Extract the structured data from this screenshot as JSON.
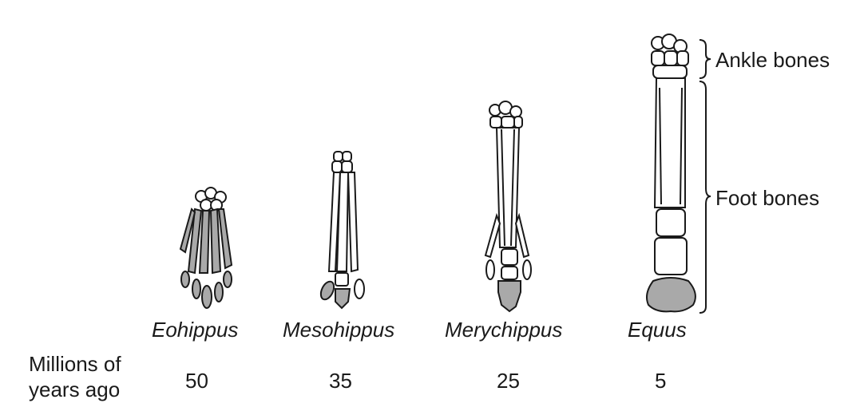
{
  "figure": {
    "time_row_label": "Millions of years ago",
    "species": [
      {
        "name": "Eohippus",
        "mya": "50"
      },
      {
        "name": "Mesohippus",
        "mya": "35"
      },
      {
        "name": "Merychippus",
        "mya": "25"
      },
      {
        "name": "Equus",
        "mya": "5"
      }
    ],
    "brace_labels": {
      "ankle": "Ankle bones",
      "foot": "Foot bones"
    }
  }
}
